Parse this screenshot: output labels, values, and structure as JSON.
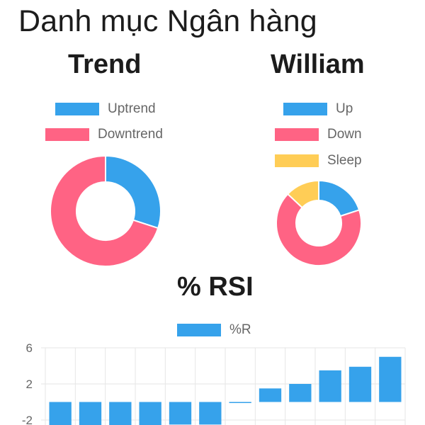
{
  "page": {
    "title": "Danh mục Ngân hàng"
  },
  "colors": {
    "blue": "#36a2eb",
    "pink": "#ff6384",
    "yellow": "#ffcd56",
    "grid": "#e6e6e6",
    "axis": "#666666"
  },
  "chart_data": [
    {
      "type": "pie",
      "title": "Trend",
      "labels": [
        "Uptrend",
        "Downtrend"
      ],
      "values": [
        30,
        70
      ],
      "colors": [
        "#36a2eb",
        "#ff6384"
      ],
      "legend": "top"
    },
    {
      "type": "pie",
      "title": "William",
      "labels": [
        "Up",
        "Down",
        "Sleep"
      ],
      "values": [
        20,
        67,
        13
      ],
      "colors": [
        "#36a2eb",
        "#ff6384",
        "#ffcd56"
      ],
      "legend": "top"
    },
    {
      "type": "bar",
      "title": "% RSI",
      "series": [
        {
          "name": "%R",
          "color": "#36a2eb",
          "values": [
            -3,
            -3,
            -3,
            -3,
            -2.5,
            -2.5,
            -0.1,
            1.5,
            2,
            3.5,
            3.9,
            5
          ]
        }
      ],
      "yticks": [
        "6",
        "2",
        "-2"
      ],
      "ylim": [
        -2.2,
        6
      ],
      "grid": true,
      "legend": "top"
    }
  ]
}
